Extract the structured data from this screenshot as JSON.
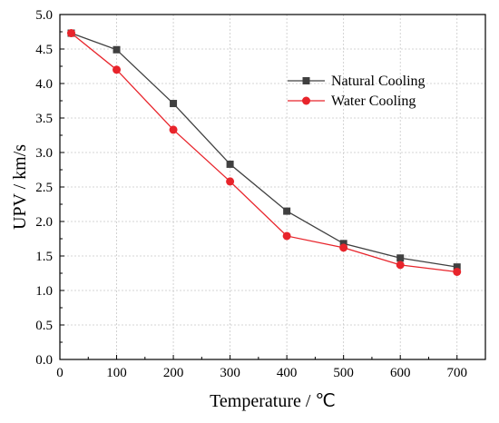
{
  "chart_data": {
    "type": "line",
    "xlabel": "Temperature / ℃",
    "ylabel": "UPV / km/s",
    "xlim": [
      0,
      750
    ],
    "ylim": [
      0.0,
      5.0
    ],
    "x_ticks": [
      "0",
      "100",
      "200",
      "300",
      "400",
      "500",
      "600",
      "700"
    ],
    "y_ticks": [
      "0.0",
      "0.5",
      "1.0",
      "1.5",
      "2.0",
      "2.5",
      "3.0",
      "3.5",
      "4.0",
      "4.5",
      "5.0"
    ],
    "x": [
      20,
      100,
      200,
      300,
      400,
      500,
      600,
      700
    ],
    "grid": true,
    "legend_position": "top-right",
    "series": [
      {
        "name": "Natural Cooling",
        "color": "#404040",
        "marker": "square",
        "values": [
          4.73,
          4.49,
          3.71,
          2.83,
          2.15,
          1.68,
          1.47,
          1.34
        ]
      },
      {
        "name": "Water Cooling",
        "color": "#e8242b",
        "marker": "circle",
        "values": [
          4.73,
          4.2,
          3.33,
          2.58,
          1.79,
          1.62,
          1.37,
          1.27
        ]
      }
    ]
  }
}
